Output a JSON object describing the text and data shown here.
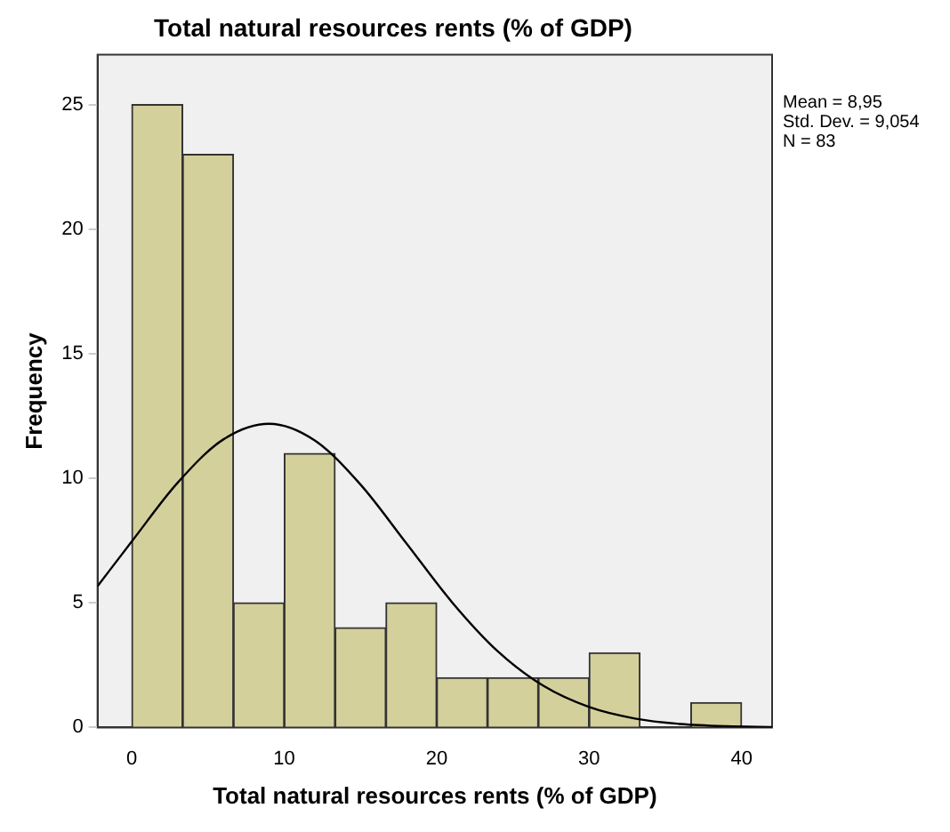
{
  "chart_data": {
    "type": "histogram",
    "title": "Total natural resources rents (% of GDP)",
    "xlabel": "Total natural resources rents (% of GDP)",
    "ylabel": "Frequency",
    "bins": [
      0,
      3.333,
      6.667,
      10,
      13.333,
      16.667,
      20,
      23.333,
      26.667,
      30,
      33.333,
      36.667,
      40
    ],
    "series": [
      {
        "color": "#d4d09c",
        "values": [
          25,
          23,
          5,
          11,
          4,
          5,
          2,
          2,
          2,
          3,
          0,
          1
        ]
      },
      {
        "type": "line",
        "color": "#000000",
        "x": [
          -2.25,
          0,
          3,
          6,
          9,
          12,
          15,
          18,
          21,
          24,
          27,
          30,
          33,
          36,
          39,
          42
        ],
        "values": [
          5.67,
          7.47,
          9.82,
          11.56,
          12.19,
          11.52,
          9.75,
          7.4,
          5.03,
          3.06,
          1.67,
          0.82,
          0.36,
          0.14,
          0.05,
          0.02
        ]
      }
    ],
    "xlim": [
      -2.25,
      42
    ],
    "xticks": [
      0,
      10,
      20,
      30,
      40
    ],
    "ylim": [
      0,
      27
    ],
    "yticks": [
      0,
      5,
      10,
      15,
      20,
      25
    ],
    "grid": false,
    "legend": false,
    "annotations": [
      "Mean = 8,95",
      "Std. Dev. = 9,054",
      "N = 83"
    ]
  }
}
